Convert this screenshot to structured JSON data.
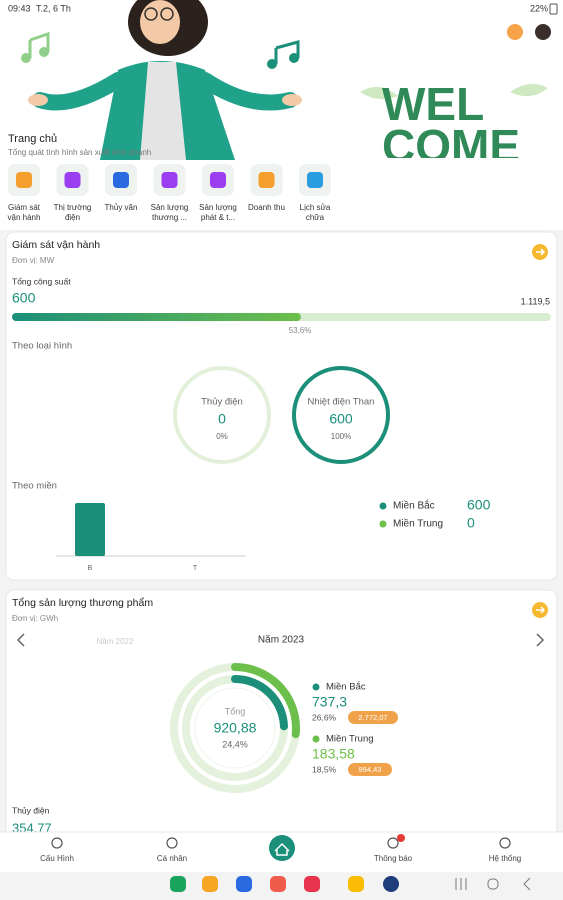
{
  "status_bar": {
    "time": "09:43",
    "date": "T.2, 6 Th",
    "battery": "22%"
  },
  "header": {
    "title": "Trang chủ",
    "subtitle": "Tổng quát tình hình sản xuất kinh doanh",
    "banner": [
      "WEL",
      "COME"
    ]
  },
  "menu": [
    [
      "Giám sát",
      "vận hành"
    ],
    [
      "Thị trường",
      "điện"
    ],
    [
      "Thủy văn"
    ],
    [
      "Sản lượng",
      "thương ..."
    ],
    [
      "Sản lượng",
      "phát & t..."
    ],
    [
      "Doanh thu"
    ],
    [
      "Lịch sửa",
      "chữa"
    ]
  ],
  "operation": {
    "title": "Giám sát vận hành",
    "unit": "Đơn vị: MW",
    "capacity_label": "Tổng công suất",
    "capacity": "600",
    "capacity_max": "1.119,5",
    "progress": {
      "value": 53.6,
      "label": "53,6%"
    },
    "by_type_label": "Theo loại hình",
    "by_type": [
      {
        "name": "Thủy điện",
        "value": "0",
        "share": {
          "value": 0,
          "label": "0%"
        }
      },
      {
        "name": "Nhiệt điện Than",
        "value": "600",
        "share": {
          "value": 100,
          "label": "100%"
        }
      }
    ],
    "by_region_label": "Theo miền",
    "regions": [
      {
        "name": "Miền Bắc",
        "short": "B",
        "value": {
          "value": 600,
          "label": "600"
        }
      },
      {
        "name": "Miền Trung",
        "short": "T",
        "value": {
          "value": 0,
          "label": "0"
        }
      }
    ]
  },
  "output": {
    "title": "Tổng sản lượng thương phẩm",
    "unit": "Đơn vị: GWh",
    "prev_year": "Năm 2022",
    "year": "Năm 2023",
    "total_label": "Tổng",
    "total": "920,88",
    "total_share": {
      "value": 24.4,
      "label": "24,4%"
    },
    "regions": [
      {
        "name": "Miền Bắc",
        "value": "737,3",
        "share": {
          "value": 26.6,
          "label": "26,6%"
        },
        "badge": "2.772,07"
      },
      {
        "name": "Miền Trung",
        "value": "183,58",
        "share": {
          "value": 18.5,
          "label": "18,5%"
        },
        "badge": "994,43"
      }
    ],
    "hydro_label": "Thủy điện",
    "hydro_value": "354,77"
  },
  "bottom_nav": [
    "Cấu Hình",
    "Cá nhân",
    "Thông báo",
    "Hệ thống"
  ]
}
